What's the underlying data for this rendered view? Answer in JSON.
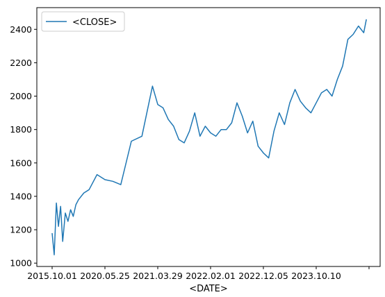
{
  "chart_data": {
    "type": "line",
    "xlabel": "<DATE>",
    "ylabel": "",
    "title": "",
    "x_tick_labels": [
      "2015.10.01",
      "2020.05.25",
      "2021.03.29",
      "2022.02.01",
      "2022.12.05",
      "2023.10.10",
      ""
    ],
    "ylim": [
      980,
      2530
    ],
    "y_ticks": [
      1000,
      1200,
      1400,
      1600,
      1800,
      2000,
      2200,
      2400
    ],
    "grid": false,
    "legend_position": "top-left",
    "series": [
      {
        "name": "<CLOSE>",
        "color": "#1f77b4",
        "x_index": [
          0,
          0.04,
          0.08,
          0.12,
          0.16,
          0.2,
          0.25,
          0.3,
          0.35,
          0.4,
          0.45,
          0.5,
          0.6,
          0.7,
          0.85,
          1,
          1.15,
          1.3,
          1.5,
          1.7,
          1.9,
          2,
          2.1,
          2.2,
          2.3,
          2.4,
          2.5,
          2.6,
          2.7,
          2.8,
          2.9,
          3,
          3.1,
          3.2,
          3.3,
          3.4,
          3.5,
          3.6,
          3.7,
          3.8,
          3.9,
          4,
          4.1,
          4.2,
          4.3,
          4.4,
          4.5,
          4.6,
          4.7,
          4.8,
          4.9,
          5,
          5.1,
          5.2,
          5.3,
          5.4,
          5.5,
          5.6,
          5.7,
          5.8,
          5.9,
          5.95
        ],
        "values": [
          1180,
          1050,
          1360,
          1220,
          1340,
          1130,
          1300,
          1250,
          1320,
          1280,
          1350,
          1380,
          1420,
          1440,
          1530,
          1500,
          1490,
          1470,
          1730,
          1760,
          2060,
          1950,
          1930,
          1860,
          1820,
          1740,
          1720,
          1790,
          1900,
          1760,
          1820,
          1780,
          1760,
          1800,
          1800,
          1840,
          1960,
          1880,
          1780,
          1850,
          1700,
          1660,
          1630,
          1790,
          1900,
          1830,
          1960,
          2040,
          1970,
          1930,
          1900,
          1960,
          2020,
          2040,
          2000,
          2100,
          2180,
          2340,
          2370,
          2420,
          2380,
          2460
        ]
      }
    ]
  }
}
